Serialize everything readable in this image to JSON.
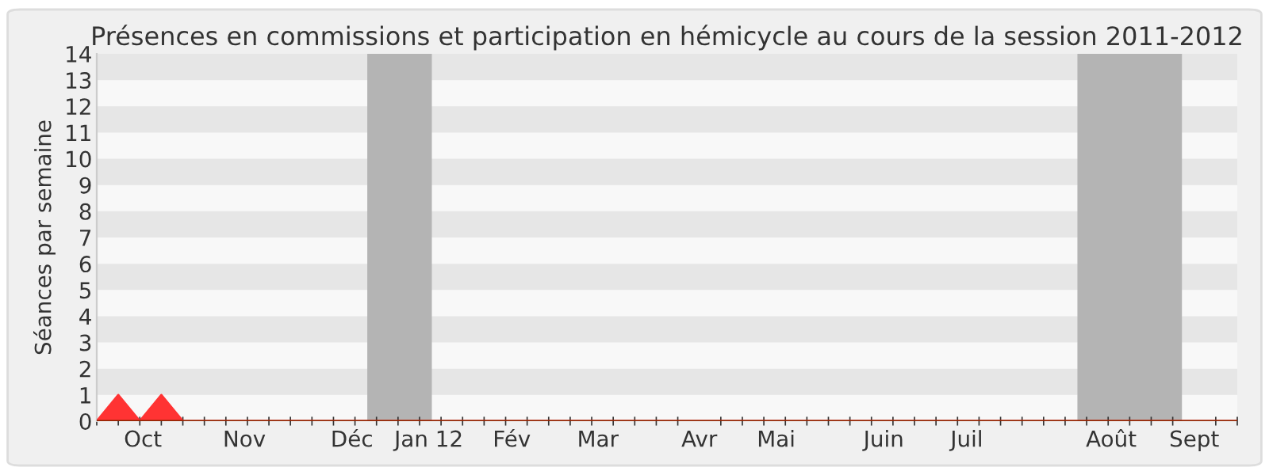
{
  "chart_data": {
    "type": "area",
    "title": "Présences en commissions et participation en hémicycle au cours de la session 2011-2012",
    "ylabel": "Séances par semaine",
    "x": [
      "2011-09-26",
      "2011-10-03",
      "2011-10-10",
      "2011-10-17",
      "2011-10-24",
      "2011-10-31",
      "2011-11-07",
      "2011-11-14",
      "2011-11-21",
      "2011-11-28",
      "2011-12-05",
      "2011-12-12",
      "2011-12-19",
      "2011-12-26",
      "2012-01-02",
      "2012-01-09",
      "2012-01-16",
      "2012-01-23",
      "2012-01-30",
      "2012-02-06",
      "2012-02-13",
      "2012-02-20",
      "2012-02-27",
      "2012-03-05",
      "2012-03-12",
      "2012-03-19",
      "2012-03-26",
      "2012-04-02",
      "2012-04-09",
      "2012-04-16",
      "2012-04-23",
      "2012-04-30",
      "2012-05-07",
      "2012-05-14",
      "2012-05-21",
      "2012-05-28",
      "2012-06-04",
      "2012-06-11",
      "2012-06-18",
      "2012-06-25",
      "2012-07-02",
      "2012-07-09",
      "2012-07-16",
      "2012-07-23",
      "2012-07-30",
      "2012-08-06",
      "2012-08-13",
      "2012-08-20",
      "2012-08-27",
      "2012-09-03",
      "2012-09-10",
      "2012-09-17",
      "2012-09-24",
      "2012-10-01"
    ],
    "series": [
      {
        "color": "#ff3333",
        "values": [
          0,
          1,
          0,
          1,
          0,
          0,
          0,
          0,
          0,
          0,
          0,
          0,
          0,
          0,
          0,
          0,
          0,
          0,
          0,
          0,
          0,
          0,
          0,
          0,
          0,
          0,
          0,
          0,
          0,
          0,
          0,
          0,
          0,
          0,
          0,
          0,
          0,
          0,
          0,
          0,
          0,
          0,
          0,
          0,
          0,
          0,
          0,
          0,
          0,
          0,
          0,
          0,
          0,
          0
        ]
      }
    ],
    "xlim": [
      "2011-09-26",
      "2012-10-01"
    ],
    "xticks": [
      {
        "value": "2011-10-11",
        "label": "Oct"
      },
      {
        "value": "2011-11-13",
        "label": "Nov"
      },
      {
        "value": "2011-12-18",
        "label": "Déc"
      },
      {
        "value": "2012-01-12",
        "label": "Jan 12"
      },
      {
        "value": "2012-02-08",
        "label": "Fév"
      },
      {
        "value": "2012-03-07",
        "label": "Mar"
      },
      {
        "value": "2012-04-09",
        "label": "Avr"
      },
      {
        "value": "2012-05-04",
        "label": "Mai"
      },
      {
        "value": "2012-06-08",
        "label": "Juin"
      },
      {
        "value": "2012-07-05",
        "label": "Juil"
      },
      {
        "value": "2012-08-21",
        "label": "Août"
      },
      {
        "value": "2012-09-17",
        "label": "Sept"
      }
    ],
    "ylim": [
      0,
      14
    ],
    "yticks": [
      0,
      1,
      2,
      3,
      4,
      5,
      6,
      7,
      8,
      9,
      10,
      11,
      12,
      13,
      14
    ],
    "bands": [
      {
        "axis": "x",
        "from": "2011-12-23",
        "to": "2012-01-13",
        "color": "#b4b4b4"
      },
      {
        "axis": "x",
        "from": "2012-08-10",
        "to": "2012-09-13",
        "color": "#b4b4b4"
      },
      {
        "axis": "y",
        "from": 1,
        "to": 2,
        "color": "#e6e6e6"
      },
      {
        "axis": "y",
        "from": 3,
        "to": 4,
        "color": "#e6e6e6"
      },
      {
        "axis": "y",
        "from": 5,
        "to": 6,
        "color": "#e6e6e6"
      },
      {
        "axis": "y",
        "from": 7,
        "to": 8,
        "color": "#e6e6e6"
      },
      {
        "axis": "y",
        "from": 9,
        "to": 10,
        "color": "#e6e6e6"
      },
      {
        "axis": "y",
        "from": 11,
        "to": 12,
        "color": "#e6e6e6"
      },
      {
        "axis": "y",
        "from": 13,
        "to": 14,
        "color": "#e6e6e6"
      }
    ]
  }
}
